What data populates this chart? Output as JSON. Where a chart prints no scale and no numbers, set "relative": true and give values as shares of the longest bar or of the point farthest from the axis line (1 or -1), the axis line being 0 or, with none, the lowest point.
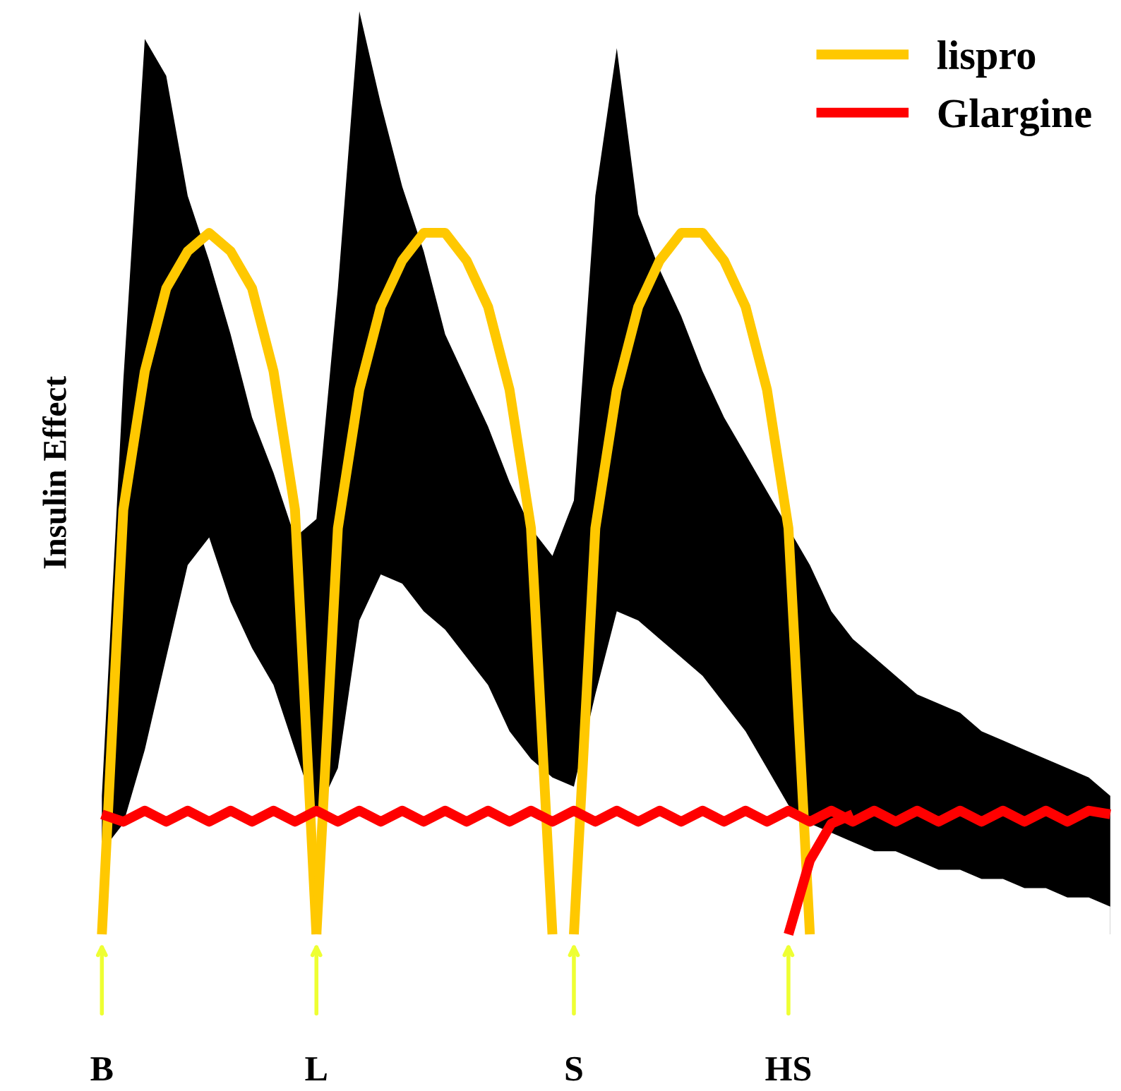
{
  "chart_data": {
    "type": "line",
    "relative": true,
    "ylabel": "Insulin Effect",
    "legend": "top right",
    "categories": [
      "B",
      null,
      null,
      null,
      null,
      null,
      null,
      null,
      null,
      null,
      "L",
      null,
      null,
      null,
      null,
      null,
      null,
      null,
      null,
      null,
      null,
      null,
      "S",
      null,
      null,
      null,
      null,
      null,
      null,
      null,
      null,
      null,
      "HS",
      null,
      null,
      null,
      null,
      null,
      null,
      null,
      null,
      null,
      null,
      null,
      null,
      null,
      null,
      null
    ],
    "series": [
      {
        "type": "area",
        "color": "#000000",
        "values": [
          0.15,
          0.6,
          0.97,
          0.93,
          0.8,
          0.73,
          0.65,
          0.56,
          0.5,
          0.43,
          0.45,
          0.7,
          1.0,
          0.9,
          0.81,
          0.74,
          0.65,
          0.6,
          0.55,
          0.49,
          0.44,
          0.41,
          0.47,
          0.8,
          0.96,
          0.78,
          0.72,
          0.67,
          0.61,
          0.56,
          0.52,
          0.48,
          0.44,
          0.4,
          0.35,
          0.32,
          0.3,
          0.28,
          0.26,
          0.25,
          0.24,
          0.22,
          0.21,
          0.2,
          0.19,
          0.18,
          0.17,
          0.15
        ]
      },
      {
        "type": "area",
        "color": "#ffffff",
        "values": [
          0.09,
          0.12,
          0.2,
          0.3,
          0.4,
          0.43,
          0.36,
          0.31,
          0.27,
          0.2,
          0.13,
          0.18,
          0.34,
          0.39,
          0.38,
          0.35,
          0.33,
          0.3,
          0.27,
          0.22,
          0.19,
          0.17,
          0.16,
          0.26,
          0.35,
          0.34,
          0.32,
          0.3,
          0.28,
          0.25,
          0.22,
          0.18,
          0.14,
          0.12,
          0.11,
          0.1,
          0.09,
          0.09,
          0.08,
          0.07,
          0.07,
          0.06,
          0.06,
          0.05,
          0.05,
          0.04,
          0.04,
          0.03
        ]
      },
      {
        "name": "lispro",
        "color": "#ffc800",
        "values": [
          0,
          0.46,
          0.61,
          0.7,
          0.74,
          0.76,
          0.74,
          0.7,
          0.61,
          0.46,
          0,
          null,
          null,
          null,
          null,
          null,
          null,
          null,
          null,
          null,
          null,
          null,
          null,
          null,
          null,
          null,
          null,
          null,
          null,
          null,
          null,
          null,
          null,
          null,
          null,
          null,
          null,
          null,
          null,
          null,
          null,
          null,
          null,
          null,
          null,
          null,
          null,
          null
        ]
      },
      {
        "color": "#ffc800",
        "values": [
          null,
          null,
          null,
          null,
          null,
          null,
          null,
          null,
          null,
          null,
          0,
          0.44,
          0.59,
          0.68,
          0.73,
          0.76,
          0.76,
          0.73,
          0.68,
          0.59,
          0.44,
          0,
          null,
          null,
          null,
          null,
          null,
          null,
          null,
          null,
          null,
          null,
          null,
          null,
          null,
          null,
          null,
          null,
          null,
          null,
          null,
          null,
          null,
          null,
          null,
          null,
          null,
          null
        ]
      },
      {
        "color": "#ffc800",
        "values": [
          null,
          null,
          null,
          null,
          null,
          null,
          null,
          null,
          null,
          null,
          null,
          null,
          null,
          null,
          null,
          null,
          null,
          null,
          null,
          null,
          null,
          null,
          0,
          0.44,
          0.59,
          0.68,
          0.73,
          0.76,
          0.76,
          0.73,
          0.68,
          0.59,
          0.44,
          0,
          null,
          null,
          null,
          null,
          null,
          null,
          null,
          null,
          null,
          null,
          null,
          null,
          null,
          null
        ]
      },
      {
        "name": "Glargine",
        "color": "#ff0000",
        "values": [
          0.13,
          0.122,
          0.134,
          0.122,
          0.134,
          0.122,
          0.134,
          0.122,
          0.134,
          0.122,
          0.134,
          0.122,
          0.134,
          0.122,
          0.134,
          0.122,
          0.134,
          0.122,
          0.134,
          0.122,
          0.134,
          0.122,
          0.134,
          0.122,
          0.134,
          0.122,
          0.134,
          0.122,
          0.134,
          0.122,
          0.134,
          0.122,
          0.134,
          0.122,
          0.134,
          0.122,
          0.134,
          0.122,
          0.134,
          0.122,
          0.134,
          0.122,
          0.134,
          0.122,
          0.134,
          0.122,
          0.134,
          0.13
        ]
      },
      {
        "color": "#ff0000",
        "values": [
          null,
          null,
          null,
          null,
          null,
          null,
          null,
          null,
          null,
          null,
          null,
          null,
          null,
          null,
          null,
          null,
          null,
          null,
          null,
          null,
          null,
          null,
          null,
          null,
          null,
          null,
          null,
          null,
          null,
          null,
          null,
          null,
          0,
          0.08,
          0.12,
          0.13,
          null,
          null,
          null,
          null,
          null,
          null,
          null,
          null,
          null,
          null,
          null,
          null
        ]
      }
    ]
  }
}
